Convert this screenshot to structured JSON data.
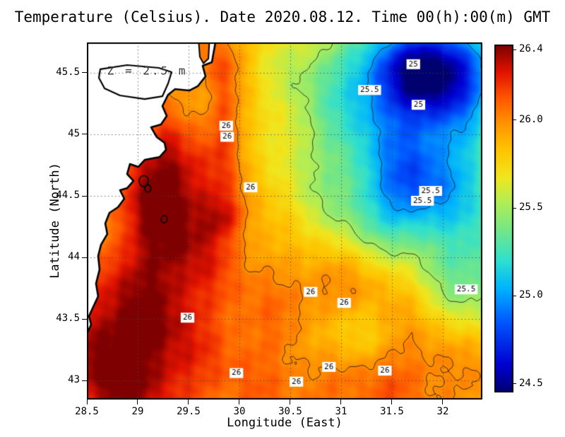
{
  "chart_data": {
    "type": "heatmap",
    "title": "Temperature (Celsius). Date 2020.08.12. Time 00(h):00(m) GMT",
    "xlabel": "Longitude (East)",
    "ylabel": "Latitude (North)",
    "x_range": [
      28.5,
      32.389
    ],
    "y_range": [
      42.845,
      45.747
    ],
    "x_ticks": [
      28.5,
      29,
      29.5,
      30,
      30.5,
      31,
      31.5,
      32
    ],
    "y_ticks": [
      43,
      43.5,
      44,
      44.5,
      45,
      45.5
    ],
    "grid": true,
    "annotation": {
      "text": "Z = 2.5 m",
      "x": 28.7,
      "y": 45.52
    },
    "colorbar": {
      "min": 24.45,
      "max": 26.43,
      "ticks": [
        26.4,
        26.0,
        25.5,
        25.0,
        24.5
      ],
      "tick_labels": [
        "26.4",
        "26.0",
        "25.5",
        "25.0",
        "24.5"
      ]
    },
    "colormap": [
      [
        0.0,
        "#00006e"
      ],
      [
        0.08,
        "#0000d0"
      ],
      [
        0.2,
        "#0055ff"
      ],
      [
        0.3,
        "#00b4ff"
      ],
      [
        0.38,
        "#2fe0d0"
      ],
      [
        0.48,
        "#7ee87e"
      ],
      [
        0.55,
        "#b4ee55"
      ],
      [
        0.62,
        "#f2e61e"
      ],
      [
        0.7,
        "#ffc400"
      ],
      [
        0.78,
        "#ff9000"
      ],
      [
        0.85,
        "#ff5500"
      ],
      [
        0.92,
        "#e31400"
      ],
      [
        1.0,
        "#7e0000"
      ]
    ],
    "contour_levels": [
      25,
      25.5,
      26
    ],
    "contour_labels": [
      {
        "text": "26",
        "x": 29.87,
        "y": 45.07
      },
      {
        "text": "26",
        "x": 29.88,
        "y": 44.98
      },
      {
        "text": "26",
        "x": 30.11,
        "y": 44.57
      },
      {
        "text": "26",
        "x": 29.49,
        "y": 43.51
      },
      {
        "text": "26",
        "x": 30.7,
        "y": 43.72
      },
      {
        "text": "26",
        "x": 31.03,
        "y": 43.63
      },
      {
        "text": "26",
        "x": 29.97,
        "y": 43.06
      },
      {
        "text": "26",
        "x": 30.56,
        "y": 42.99
      },
      {
        "text": "26",
        "x": 30.88,
        "y": 43.11
      },
      {
        "text": "26",
        "x": 31.43,
        "y": 43.08
      },
      {
        "text": "25.5",
        "x": 31.28,
        "y": 45.36
      },
      {
        "text": "25.5",
        "x": 31.88,
        "y": 44.54
      },
      {
        "text": "25.5",
        "x": 31.8,
        "y": 44.46
      },
      {
        "text": "25.5",
        "x": 32.23,
        "y": 43.74
      },
      {
        "text": "25",
        "x": 31.71,
        "y": 45.57
      },
      {
        "text": "25",
        "x": 31.76,
        "y": 45.24
      }
    ],
    "field": {
      "base": 25.91,
      "noise_amp": 0.045,
      "blobs": [
        {
          "x": 29.45,
          "y": 44.3,
          "a": 0.4,
          "sx": 0.4,
          "sy": 0.5
        },
        {
          "x": 29.85,
          "y": 44.33,
          "a": 0.18,
          "sx": 0.15,
          "sy": 0.12
        },
        {
          "x": 29.2,
          "y": 44.7,
          "a": 0.25,
          "sx": 0.25,
          "sy": 0.3
        },
        {
          "x": 29.85,
          "y": 45.2,
          "a": 0.22,
          "sx": 0.12,
          "sy": 0.4
        },
        {
          "x": 29.7,
          "y": 45.62,
          "a": 0.15,
          "sx": 0.25,
          "sy": 0.15
        },
        {
          "x": 29.1,
          "y": 43.5,
          "a": 0.28,
          "sx": 0.3,
          "sy": 0.6
        },
        {
          "x": 28.62,
          "y": 43.35,
          "a": 0.25,
          "sx": 0.22,
          "sy": 0.45
        },
        {
          "x": 28.75,
          "y": 42.95,
          "a": 0.22,
          "sx": 0.5,
          "sy": 0.4
        },
        {
          "x": 30.2,
          "y": 43.15,
          "a": 0.18,
          "sx": 1.1,
          "sy": 0.5
        },
        {
          "x": 30.9,
          "y": 43.75,
          "a": 0.12,
          "sx": 0.35,
          "sy": 0.25
        },
        {
          "x": 31.55,
          "y": 43.05,
          "a": 0.14,
          "sx": 0.5,
          "sy": 0.3
        },
        {
          "x": 31.95,
          "y": 45.55,
          "a": -1.15,
          "sx": 0.45,
          "sy": 0.3
        },
        {
          "x": 31.55,
          "y": 45.05,
          "a": -0.6,
          "sx": 0.5,
          "sy": 0.45
        },
        {
          "x": 32.35,
          "y": 44.55,
          "a": -0.55,
          "sx": 0.4,
          "sy": 0.55
        },
        {
          "x": 31.7,
          "y": 44.55,
          "a": -0.45,
          "sx": 0.3,
          "sy": 0.3
        },
        {
          "x": 31.35,
          "y": 44.3,
          "a": -0.3,
          "sx": 0.4,
          "sy": 0.3
        },
        {
          "x": 32.25,
          "y": 43.8,
          "a": -0.35,
          "sx": 0.35,
          "sy": 0.3
        },
        {
          "x": 31.05,
          "y": 43.35,
          "a": -0.3,
          "sx": 0.35,
          "sy": 0.22
        },
        {
          "x": 30.9,
          "y": 45.6,
          "a": -0.28,
          "sx": 0.6,
          "sy": 0.3
        },
        {
          "x": 30.75,
          "y": 45.0,
          "a": -0.22,
          "sx": 0.45,
          "sy": 0.4
        },
        {
          "x": 30.65,
          "y": 44.4,
          "a": -0.12,
          "sx": 0.45,
          "sy": 0.35
        }
      ]
    },
    "coastline": [
      [
        29.764,
        45.747
      ],
      [
        29.729,
        45.586
      ],
      [
        29.639,
        45.557
      ],
      [
        29.667,
        45.471
      ],
      [
        29.59,
        45.391
      ],
      [
        29.507,
        45.356
      ],
      [
        29.368,
        45.368
      ],
      [
        29.299,
        45.322
      ],
      [
        29.243,
        45.23
      ],
      [
        29.285,
        45.149
      ],
      [
        29.229,
        45.08
      ],
      [
        29.132,
        45.057
      ],
      [
        29.188,
        44.977
      ],
      [
        29.264,
        44.931
      ],
      [
        29.278,
        44.874
      ],
      [
        29.215,
        44.816
      ],
      [
        29.069,
        44.793
      ],
      [
        29.007,
        44.736
      ],
      [
        28.924,
        44.759
      ],
      [
        28.896,
        44.678
      ],
      [
        28.958,
        44.621
      ],
      [
        28.896,
        44.563
      ],
      [
        28.826,
        44.546
      ],
      [
        28.868,
        44.477
      ],
      [
        28.806,
        44.408
      ],
      [
        28.722,
        44.362
      ],
      [
        28.681,
        44.276
      ],
      [
        28.701,
        44.19
      ],
      [
        28.639,
        44.103
      ],
      [
        28.611,
        44.011
      ],
      [
        28.625,
        43.902
      ],
      [
        28.59,
        43.787
      ],
      [
        28.611,
        43.684
      ],
      [
        28.556,
        43.586
      ],
      [
        28.521,
        43.523
      ],
      [
        28.542,
        43.454
      ],
      [
        28.507,
        43.391
      ]
    ],
    "lagoon": [
      [
        28.632,
        45.529
      ],
      [
        28.896,
        45.563
      ],
      [
        29.208,
        45.54
      ],
      [
        29.333,
        45.506
      ],
      [
        29.299,
        45.414
      ],
      [
        29.243,
        45.31
      ],
      [
        29.069,
        45.287
      ],
      [
        28.826,
        45.316
      ],
      [
        28.674,
        45.374
      ],
      [
        28.618,
        45.46
      ]
    ],
    "inlet": [
      [
        29.6,
        45.747
      ],
      [
        29.704,
        45.747
      ],
      [
        29.695,
        45.615
      ],
      [
        29.646,
        45.577
      ],
      [
        29.611,
        45.63
      ]
    ],
    "inlet_value": 26.05,
    "islets": [
      {
        "x": 29.06,
        "y": 44.62,
        "r": 0.045
      },
      {
        "x": 29.1,
        "y": 44.56,
        "r": 0.03
      },
      {
        "x": 29.26,
        "y": 44.31,
        "r": 0.03
      }
    ]
  }
}
